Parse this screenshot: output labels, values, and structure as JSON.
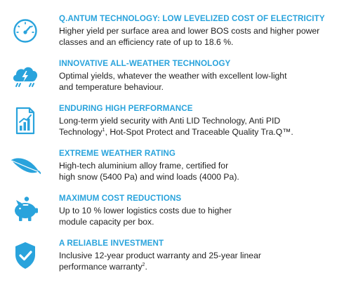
{
  "features": [
    {
      "icon": "speedometer-icon",
      "title": "Q.ANTUM TECHNOLOGY: LOW LEVELIZED COST OF ELECTRICITY",
      "line1": "Higher yield per surface area and lower BOS costs and higher power",
      "line2": "classes and an efficiency rate of up to 18.6 %."
    },
    {
      "icon": "weather-cloud-icon",
      "title": "INNOVATIVE ALL-WEATHER TECHNOLOGY",
      "line1": "Optimal yields, whatever the weather with excellent low-light",
      "line2": "and temperature behaviour."
    },
    {
      "icon": "performance-chart-icon",
      "title": "ENDURING HIGH PERFORMANCE",
      "line1": "Long-term yield security with Anti LID Technology, Anti PID",
      "line2": "Technology",
      "line2_sup": "1",
      "line2_rest": ", Hot-Spot Protect and Traceable Quality Tra.Q™."
    },
    {
      "icon": "feather-icon",
      "title": "EXTREME WEATHER RATING",
      "line1": "High-tech aluminium alloy frame, certified for",
      "line2": "high snow (5400 Pa) and wind loads (4000 Pa)."
    },
    {
      "icon": "piggy-bank-icon",
      "title": "MAXIMUM COST REDUCTIONS",
      "line1": "Up to 10 % lower logistics costs due to higher",
      "line2": "module capacity per box."
    },
    {
      "icon": "shield-check-icon",
      "title": "A RELIABLE INVESTMENT",
      "line1": "Inclusive 12-year product warranty and 25-year linear",
      "line2": "performance warranty",
      "line2_sup": "2",
      "line2_rest": "."
    }
  ],
  "colors": {
    "accent": "#29a3dc",
    "text": "#1f1f1f",
    "background": "#ffffff"
  }
}
